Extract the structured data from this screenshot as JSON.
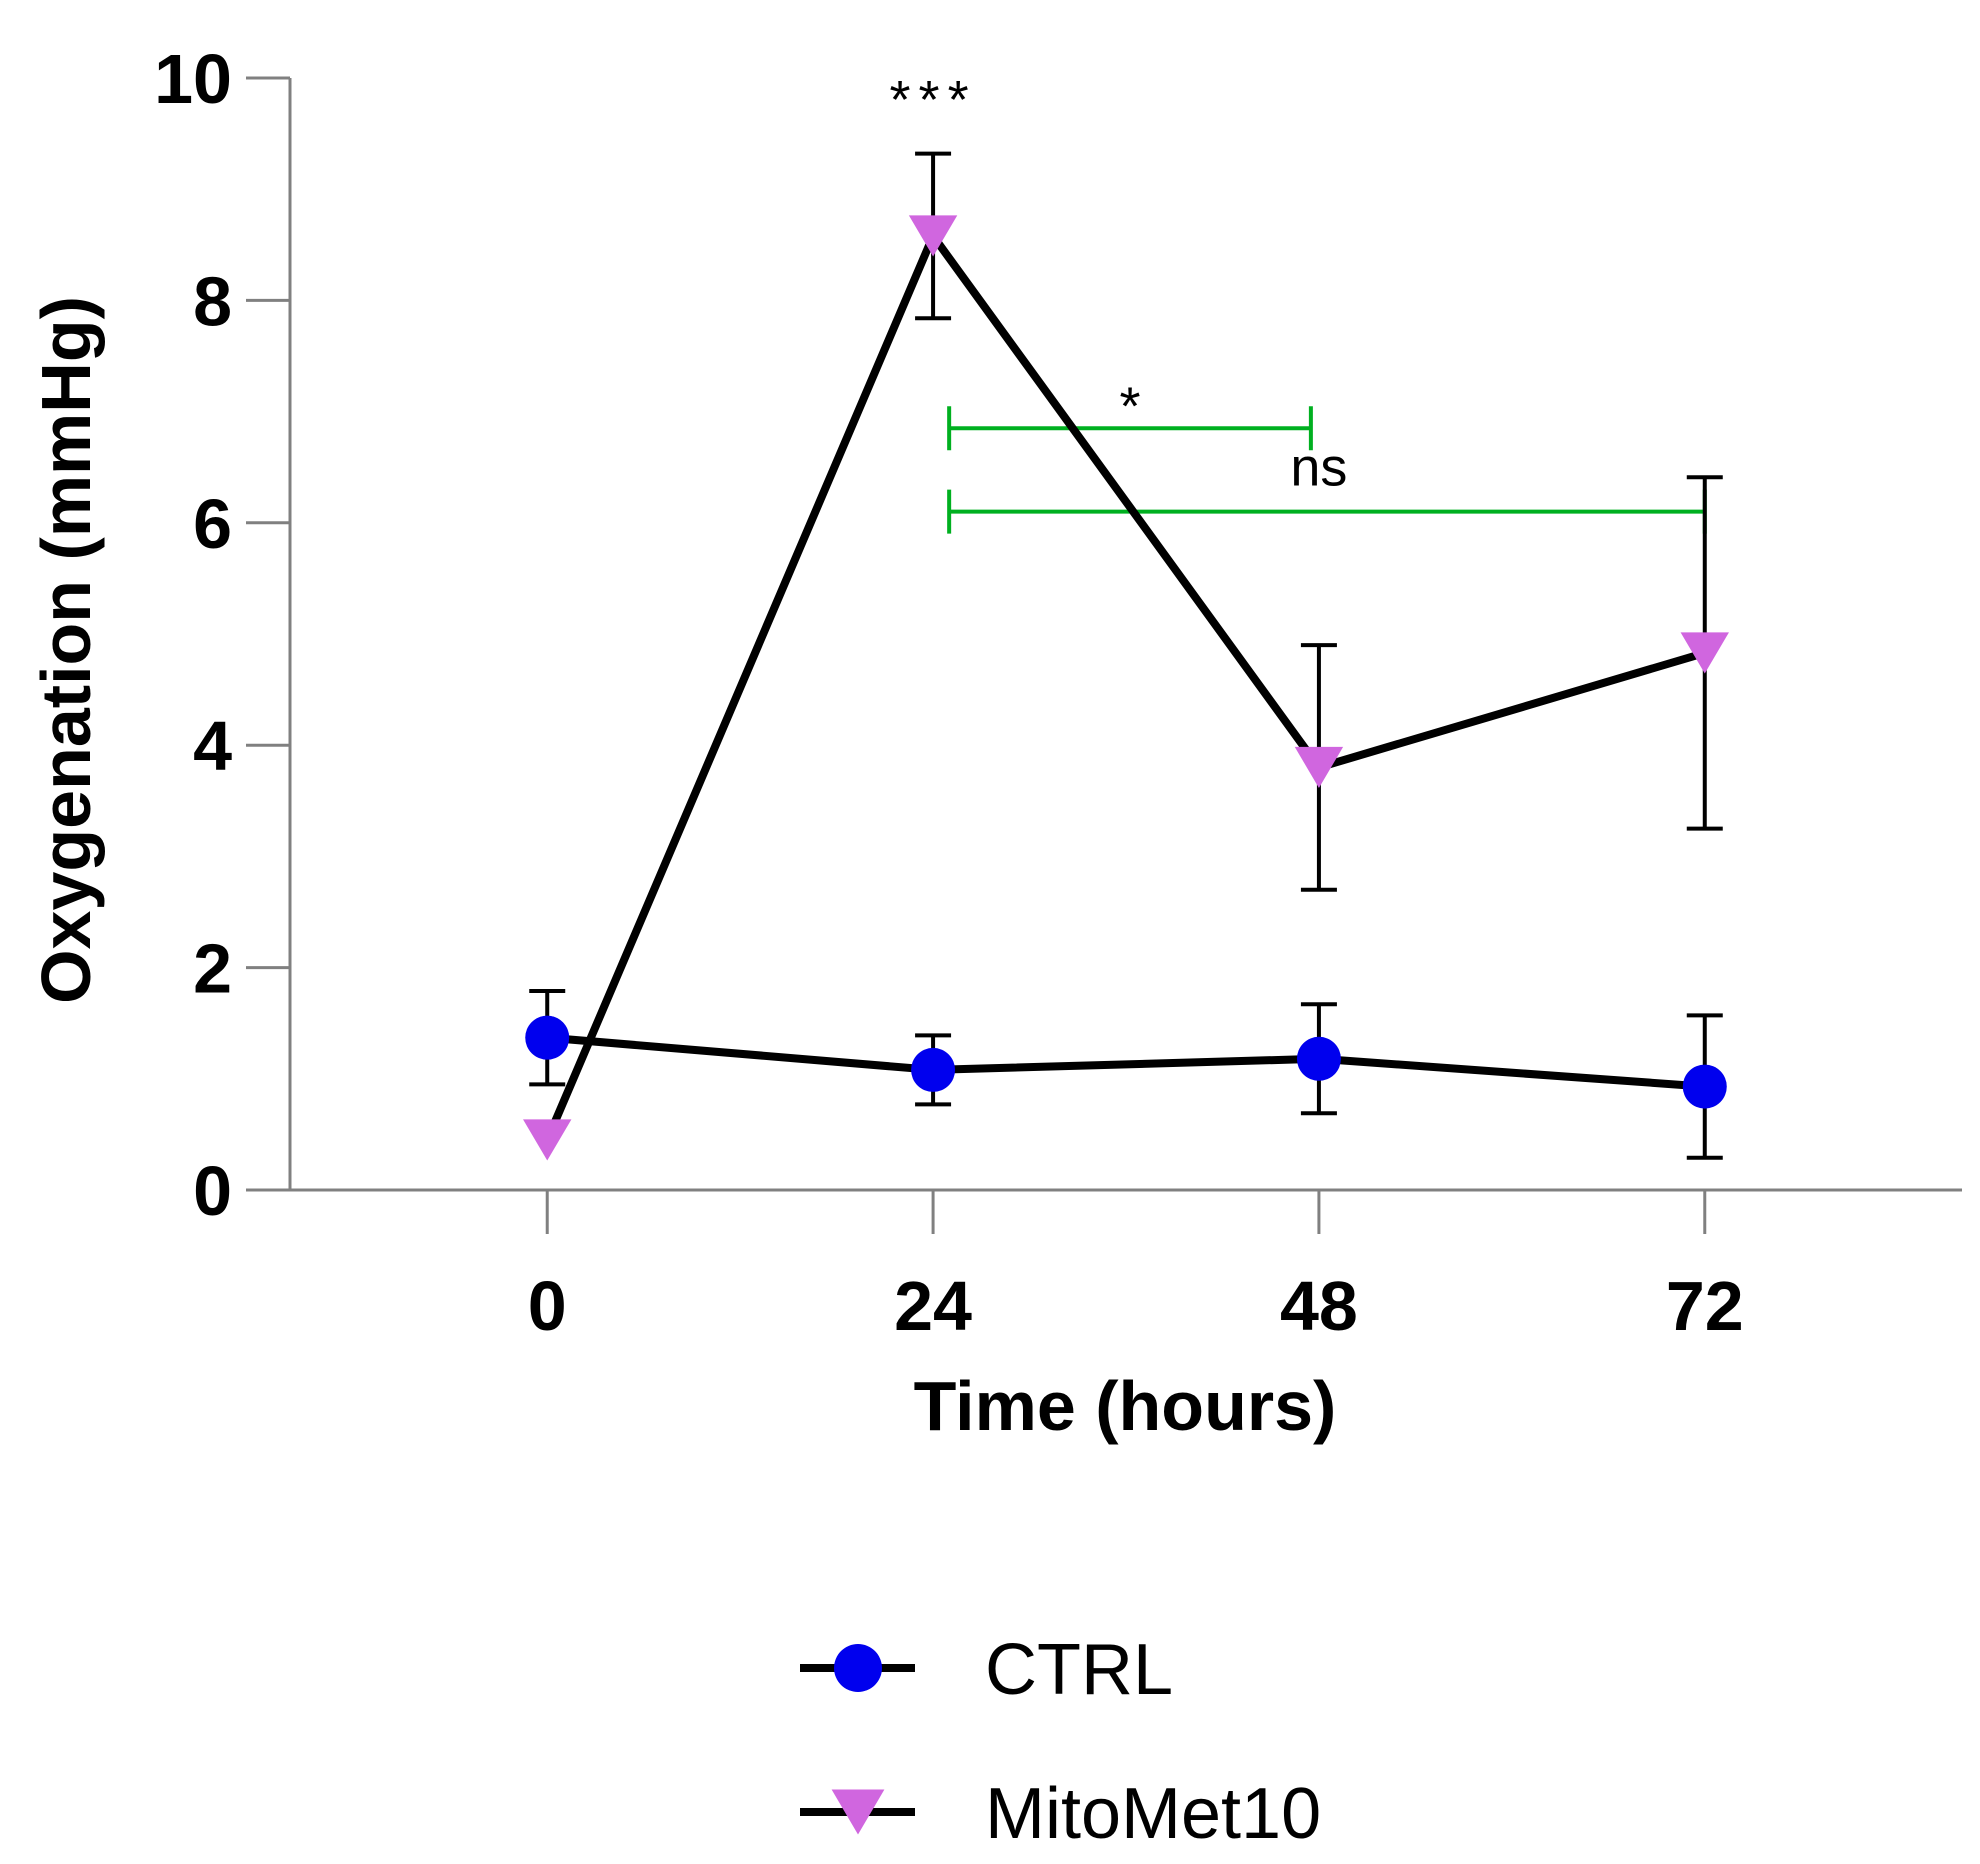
{
  "chart_data": {
    "type": "line",
    "xlabel": "Time (hours)",
    "ylabel": "Oxygenation (mmHg)",
    "x": [
      0,
      24,
      48,
      72
    ],
    "xlim": [
      -16,
      88
    ],
    "ylim": [
      0,
      10
    ],
    "x_ticks": [
      "0",
      "24",
      "48",
      "72"
    ],
    "y_ticks": [
      "0",
      "2",
      "4",
      "6",
      "8",
      "10"
    ],
    "grid": false,
    "legend_position": "bottom-center",
    "series": [
      {
        "name": "CTRL",
        "marker": "circle",
        "marker_color": "#0000ee",
        "line_color": "#000000",
        "values": [
          1.37,
          1.08,
          1.18,
          0.93
        ],
        "error": [
          0.42,
          0.31,
          0.49,
          0.64
        ]
      },
      {
        "name": "MitoMet10",
        "marker": "triangle-down",
        "marker_color": "#d066df",
        "line_color": "#000000",
        "values": [
          0.45,
          8.58,
          3.8,
          4.83
        ],
        "error": [
          0.0,
          0.74,
          1.1,
          1.58
        ]
      }
    ],
    "annotations": [
      {
        "text": "***",
        "x": 24,
        "y": 9.8
      },
      {
        "text": "*",
        "x1": 25,
        "x2": 47.5,
        "y": 6.85,
        "color": "#00b020"
      },
      {
        "text": "ns",
        "x1": 25,
        "x2": 72,
        "y": 6.1,
        "color": "#00b020"
      }
    ]
  }
}
